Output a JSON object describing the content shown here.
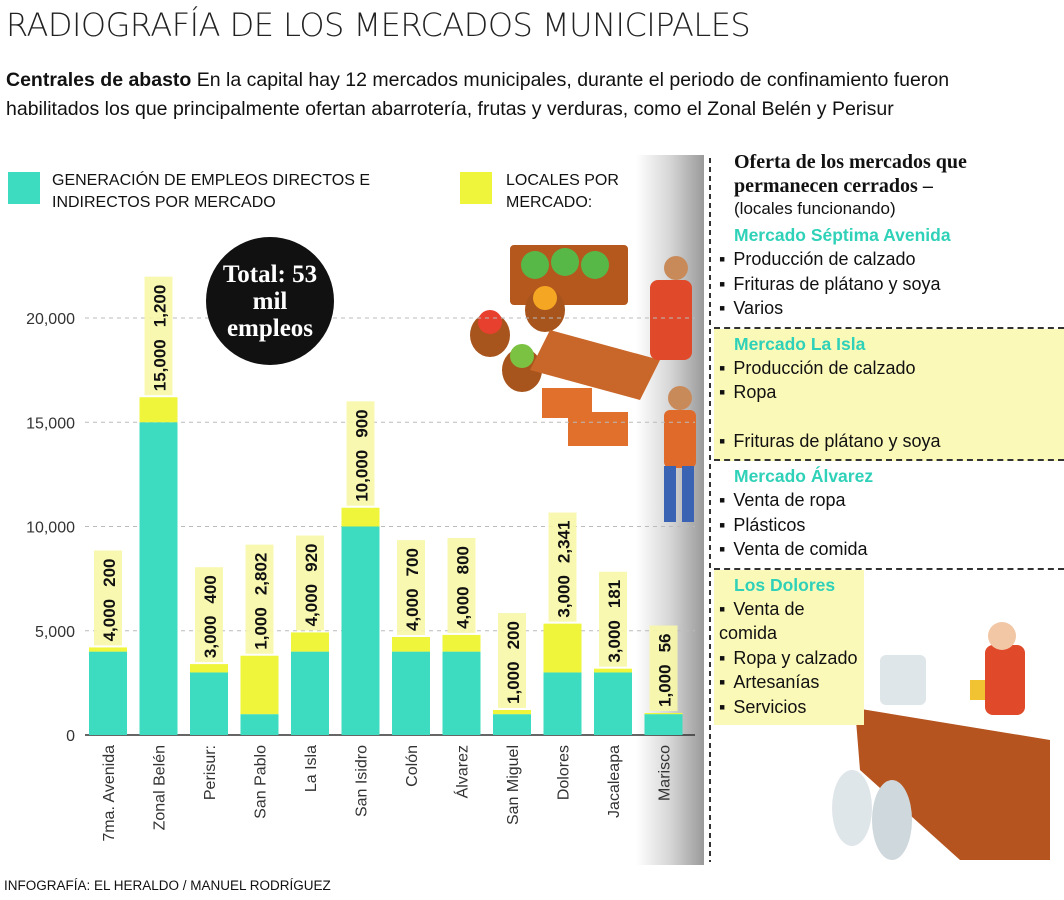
{
  "header": {
    "title": "RADIOGRAFÍA DE LOS MERCADOS MUNICIPALES"
  },
  "intro": {
    "lead": "Centrales de abasto",
    "text": "En la capital hay 12 mercados municipales, durante el periodo de confinamiento fueron habilitados los que principalmente ofertan abarrotería, frutas y verduras, como el Zonal Belén y  Perisur"
  },
  "chart_data": {
    "type": "stacked-bar",
    "annotation": "Total: 53 mil empleos",
    "categories": [
      "7ma. Avenida",
      "Zonal Belén",
      "Perisur:",
      "San Pablo",
      "La Isla",
      "San Isidro",
      "Colón",
      "Álvarez",
      "San Miguel",
      "Dolores",
      "Jacaleapa",
      "Marisco"
    ],
    "series": [
      {
        "name": "GENERACIÓN DE EMPLEOS DIRECTOS E INDIRECTOS POR MERCADO",
        "color": "#3ddcc1",
        "values": [
          4000,
          15000,
          3000,
          1000,
          4000,
          10000,
          4000,
          4000,
          1000,
          3000,
          3000,
          1000
        ],
        "value_labels": [
          "4,000",
          "15,000",
          "3,000",
          "1,000",
          "4,000",
          "10,000",
          "4,000",
          "4,000",
          "1,000",
          "3,000",
          "3,000",
          "1,000"
        ]
      },
      {
        "name": "LOCALES POR MERCADO:",
        "color": "#eef53a",
        "values": [
          200,
          1200,
          400,
          2802,
          920,
          900,
          700,
          800,
          200,
          2341,
          181,
          56
        ],
        "value_labels": [
          "200",
          "1,200",
          "400",
          "2,802",
          "920",
          "900",
          "700",
          "800",
          "200",
          "2,341",
          "181",
          "56"
        ]
      }
    ],
    "ylim": [
      0,
      20000
    ],
    "yticks": [
      0,
      {
        "value": 5000,
        "label": "5,000"
      },
      {
        "value": 10000,
        "label": "10,000"
      },
      {
        "value": 15000,
        "label": "15,000"
      },
      {
        "value": 20000,
        "label": "20,000"
      }
    ],
    "grid": true
  },
  "side_panel": {
    "title": "Oferta de los mercados que permanecen cerrados –",
    "subtitle": "(locales funcionando)",
    "sections": [
      {
        "name": "Mercado Séptima Avenida",
        "items": [
          "Producción de calzado",
          "Frituras de plátano y soya",
          "Varios"
        ]
      },
      {
        "name": "Mercado La Isla",
        "items": [
          "Producción de calzado",
          "Ropa",
          "Frituras de plátano y soya"
        ]
      },
      {
        "name": "Mercado Álvarez",
        "items": [
          "Venta de ropa",
          "Plásticos",
          "Venta de comida"
        ]
      },
      {
        "name": "Los Dolores",
        "items": [
          "Venta de comida",
          "Ropa y calzado",
          "Artesanías",
          "Servicios"
        ]
      }
    ]
  },
  "credit": "INFOGRAFÍA: EL HERALDO / MANUEL RODRÍGUEZ"
}
